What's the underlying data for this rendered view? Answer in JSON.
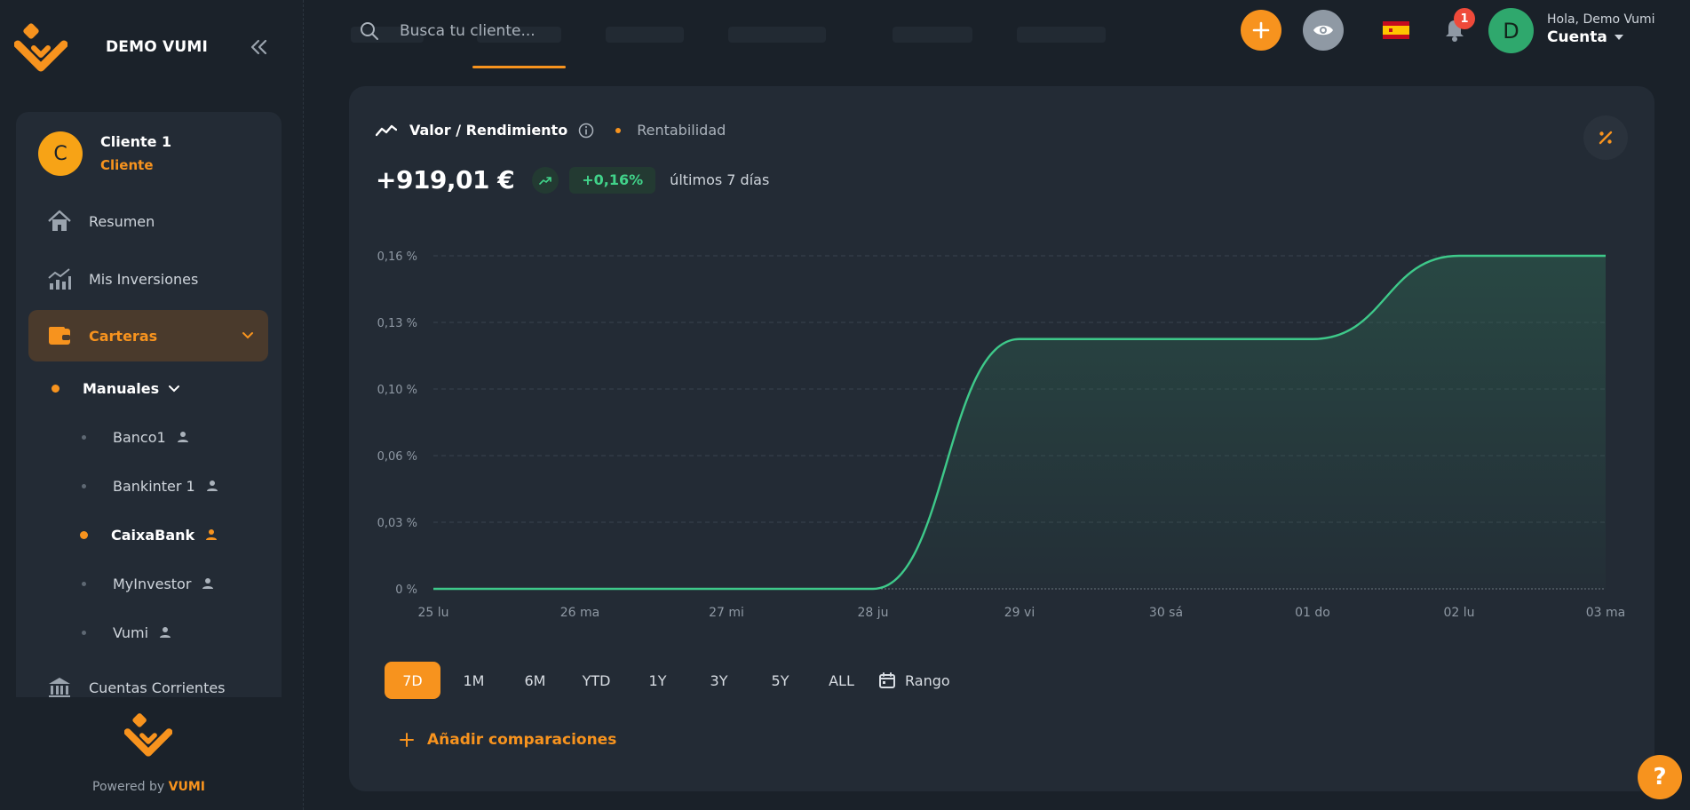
{
  "brand": {
    "name": "DEMO VUMI"
  },
  "client": {
    "initial": "C",
    "name": "Cliente 1",
    "role": "Cliente"
  },
  "nav": {
    "resumen": "Resumen",
    "inversiones": "Mis Inversiones",
    "carteras": "Carteras",
    "cuentas": "Cuentas Corrientes"
  },
  "portfolios": {
    "group": "Manuales",
    "items": [
      {
        "label": "Banco1"
      },
      {
        "label": "Bankinter 1"
      },
      {
        "label": "CaixaBank",
        "current": true
      },
      {
        "label": "MyInvestor"
      },
      {
        "label": "Vumi"
      }
    ]
  },
  "footer": {
    "powered_prefix": "Powered by",
    "powered_brand": "VUMI"
  },
  "search": {
    "placeholder": "Busca tu cliente..."
  },
  "topbar": {
    "notifications_count": "1",
    "user_initial": "D",
    "greeting": "Hola, Demo Vumi",
    "account_label": "Cuenta",
    "flag": "es-flag-icon"
  },
  "card": {
    "title": "Valor / Rendimiento",
    "legend": "Rentabilidad",
    "value": "+919,01 €",
    "change": "+0,16%",
    "period": "últimos 7 días"
  },
  "colors": {
    "accent": "#f7931e",
    "positive": "#41d38a",
    "line": "#3ec98a",
    "background": "#1a2129",
    "card": "#232b35"
  },
  "chart_data": {
    "type": "area",
    "x": [
      "25 lu",
      "26 ma",
      "27 mi",
      "28 ju",
      "29 vi",
      "30 sá",
      "01 do",
      "02 lu",
      "03 ma"
    ],
    "y_ticks": [
      "0 %",
      "0,03 %",
      "0,06 %",
      "0,10 %",
      "0,13 %",
      "0,16 %"
    ],
    "series": [
      {
        "values": [
          0,
          0,
          0,
          0,
          0.12,
          0.12,
          0.12,
          0.16,
          0.16
        ]
      }
    ],
    "ylim": [
      0,
      0.16
    ],
    "grid": true,
    "curve": "smooth"
  },
  "ranges": {
    "options": [
      "7D",
      "1M",
      "6M",
      "YTD",
      "1Y",
      "3Y",
      "5Y",
      "ALL"
    ],
    "selected": "7D",
    "custom_label": "Rango"
  },
  "compare": {
    "label": "Añadir comparaciones"
  },
  "help": {
    "label": "?"
  }
}
